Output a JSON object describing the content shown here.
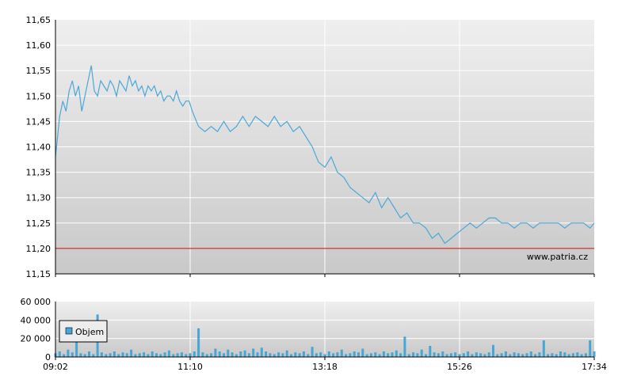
{
  "watermark": "www.patria.cz",
  "colors": {
    "line": "#4aa8d8",
    "volume": "#46a6d6",
    "reference": "#cc0000",
    "grid": "#ffffff",
    "plot_top": "#efefef",
    "plot_bottom": "#c9c9c9",
    "axis": "#000000"
  },
  "chart_data": [
    {
      "type": "line",
      "ylim": [
        11.15,
        11.65
      ],
      "yticks": [
        "11,15",
        "11,20",
        "11,25",
        "11,30",
        "11,35",
        "11,40",
        "11,45",
        "11,50",
        "11,55",
        "11,60",
        "11,65"
      ],
      "xticks": [
        "09:02",
        "11:10",
        "13:18",
        "15:26",
        "17:34"
      ],
      "xlim": [
        "09:02",
        "17:34"
      ],
      "reference_line": 11.2,
      "grid": true,
      "series": [
        {
          "x": [
            "09:02",
            "09:04",
            "09:06",
            "09:09",
            "09:12",
            "09:15",
            "09:18",
            "09:21",
            "09:24",
            "09:27",
            "09:30",
            "09:33",
            "09:36",
            "09:39",
            "09:42",
            "09:45",
            "09:48",
            "09:51",
            "09:54",
            "09:57",
            "10:00",
            "10:03",
            "10:06",
            "10:09",
            "10:12",
            "10:15",
            "10:18",
            "10:21",
            "10:24",
            "10:27",
            "10:30",
            "10:33",
            "10:36",
            "10:39",
            "10:42",
            "10:45",
            "10:48",
            "10:51",
            "10:54",
            "10:57",
            "11:00",
            "11:03",
            "11:06",
            "11:09",
            "11:12",
            "11:18",
            "11:24",
            "11:30",
            "11:36",
            "11:42",
            "11:48",
            "11:54",
            "12:00",
            "12:06",
            "12:12",
            "12:18",
            "12:24",
            "12:30",
            "12:36",
            "12:42",
            "12:48",
            "12:54",
            "13:00",
            "13:06",
            "13:12",
            "13:18",
            "13:24",
            "13:30",
            "13:36",
            "13:42",
            "13:48",
            "13:54",
            "14:00",
            "14:06",
            "14:12",
            "14:18",
            "14:24",
            "14:30",
            "14:36",
            "14:42",
            "14:48",
            "14:54",
            "15:00",
            "15:06",
            "15:12",
            "15:18",
            "15:24",
            "15:30",
            "15:36",
            "15:42",
            "15:48",
            "15:54",
            "16:00",
            "16:06",
            "16:12",
            "16:18",
            "16:24",
            "16:30",
            "16:36",
            "16:42",
            "16:48",
            "16:54",
            "17:00",
            "17:06",
            "17:12",
            "17:18",
            "17:24",
            "17:30",
            "17:34"
          ],
          "y": [
            11.38,
            11.42,
            11.46,
            11.49,
            11.47,
            11.51,
            11.53,
            11.5,
            11.52,
            11.47,
            11.5,
            11.53,
            11.56,
            11.51,
            11.5,
            11.53,
            11.52,
            11.51,
            11.53,
            11.52,
            11.5,
            11.53,
            11.52,
            11.51,
            11.54,
            11.52,
            11.53,
            11.51,
            11.52,
            11.5,
            11.52,
            11.51,
            11.52,
            11.5,
            11.51,
            11.49,
            11.5,
            11.5,
            11.49,
            11.51,
            11.49,
            11.48,
            11.49,
            11.49,
            11.47,
            11.44,
            11.43,
            11.44,
            11.43,
            11.45,
            11.43,
            11.44,
            11.46,
            11.44,
            11.46,
            11.45,
            11.44,
            11.46,
            11.44,
            11.45,
            11.43,
            11.44,
            11.42,
            11.4,
            11.37,
            11.36,
            11.38,
            11.35,
            11.34,
            11.32,
            11.31,
            11.3,
            11.29,
            11.31,
            11.28,
            11.3,
            11.28,
            11.26,
            11.27,
            11.25,
            11.25,
            11.24,
            11.22,
            11.23,
            11.21,
            11.22,
            11.23,
            11.24,
            11.25,
            11.24,
            11.25,
            11.26,
            11.26,
            11.25,
            11.25,
            11.24,
            11.25,
            11.25,
            11.24,
            11.25,
            11.25,
            11.25,
            11.25,
            11.24,
            11.25,
            11.25,
            11.25,
            11.24,
            11.25
          ]
        }
      ]
    },
    {
      "type": "bar",
      "ylim": [
        0,
        60000
      ],
      "yticks": [
        "0",
        "20 000",
        "40 000",
        "60 000"
      ],
      "xticks": [
        "09:02",
        "11:10",
        "13:18",
        "15:26",
        "17:34"
      ],
      "legend": "top-left",
      "grid": true,
      "series": [
        {
          "name": "Objem",
          "x": [
            "09:02",
            "09:06",
            "09:10",
            "09:14",
            "09:18",
            "09:22",
            "09:26",
            "09:30",
            "09:34",
            "09:38",
            "09:42",
            "09:46",
            "09:50",
            "09:54",
            "09:58",
            "10:02",
            "10:06",
            "10:10",
            "10:14",
            "10:18",
            "10:22",
            "10:26",
            "10:30",
            "10:34",
            "10:38",
            "10:42",
            "10:46",
            "10:50",
            "10:54",
            "10:58",
            "11:02",
            "11:06",
            "11:10",
            "11:14",
            "11:18",
            "11:22",
            "11:26",
            "11:30",
            "11:34",
            "11:38",
            "11:42",
            "11:46",
            "11:50",
            "11:54",
            "11:58",
            "12:02",
            "12:06",
            "12:10",
            "12:14",
            "12:18",
            "12:22",
            "12:26",
            "12:30",
            "12:34",
            "12:38",
            "12:42",
            "12:46",
            "12:50",
            "12:54",
            "12:58",
            "13:02",
            "13:06",
            "13:10",
            "13:14",
            "13:18",
            "13:22",
            "13:26",
            "13:30",
            "13:34",
            "13:38",
            "13:42",
            "13:46",
            "13:50",
            "13:54",
            "13:58",
            "14:02",
            "14:06",
            "14:10",
            "14:14",
            "14:18",
            "14:22",
            "14:26",
            "14:30",
            "14:34",
            "14:38",
            "14:42",
            "14:46",
            "14:50",
            "14:54",
            "14:58",
            "15:02",
            "15:06",
            "15:10",
            "15:14",
            "15:18",
            "15:22",
            "15:26",
            "15:30",
            "15:34",
            "15:38",
            "15:42",
            "15:46",
            "15:50",
            "15:54",
            "15:58",
            "16:02",
            "16:06",
            "16:10",
            "16:14",
            "16:18",
            "16:22",
            "16:26",
            "16:30",
            "16:34",
            "16:38",
            "16:42",
            "16:46",
            "16:50",
            "16:54",
            "16:58",
            "17:02",
            "17:06",
            "17:10",
            "17:14",
            "17:18",
            "17:22",
            "17:26",
            "17:30",
            "17:34"
          ],
          "values": [
            4000,
            6000,
            3000,
            8000,
            5000,
            22000,
            4000,
            3000,
            6000,
            3000,
            46000,
            5000,
            3000,
            4000,
            6000,
            3000,
            5000,
            4000,
            8000,
            3000,
            4000,
            5000,
            3000,
            6000,
            4000,
            3000,
            5000,
            7000,
            3000,
            4000,
            5000,
            3000,
            4000,
            6000,
            31000,
            5000,
            3000,
            4000,
            9000,
            6000,
            4000,
            8000,
            5000,
            3000,
            6000,
            7000,
            4000,
            9000,
            5000,
            10000,
            6000,
            4000,
            3000,
            5000,
            4000,
            7000,
            3000,
            5000,
            4000,
            6000,
            3000,
            11000,
            4000,
            5000,
            3000,
            6000,
            4000,
            5000,
            8000,
            3000,
            4000,
            6000,
            5000,
            9000,
            3000,
            4000,
            5000,
            3000,
            6000,
            4000,
            5000,
            7000,
            4000,
            22000,
            3000,
            5000,
            4000,
            8000,
            3000,
            12000,
            5000,
            4000,
            6000,
            3000,
            4000,
            5000,
            3000,
            4000,
            6000,
            3000,
            5000,
            4000,
            3000,
            5000,
            13000,
            3000,
            4000,
            6000,
            3000,
            5000,
            4000,
            3000,
            4000,
            6000,
            3000,
            5000,
            18000,
            3000,
            4000,
            3000,
            6000,
            5000,
            3000,
            4000,
            5000,
            3000,
            4000,
            18000,
            6000
          ]
        }
      ]
    }
  ]
}
